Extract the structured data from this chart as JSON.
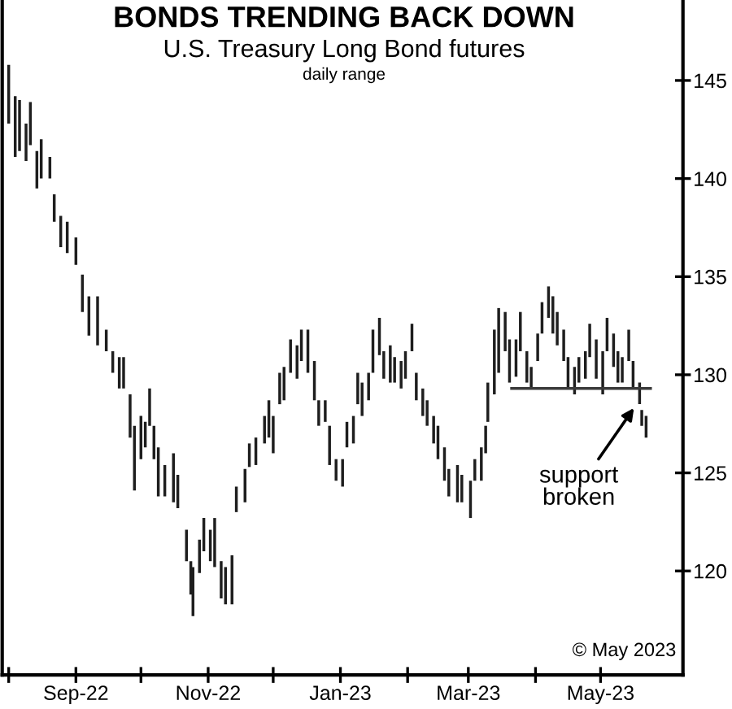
{
  "chart_data": {
    "type": "bar",
    "title": "BONDS TRENDING BACK DOWN",
    "subtitle": "U.S. Treasury Long Bond futures",
    "ylabel": "daily range",
    "series": [
      {
        "color": "#1e1e1e",
        "x": [
          "2022-08-01",
          "2022-08-04",
          "2022-08-06",
          "2022-08-09",
          "2022-08-11",
          "2022-08-14",
          "2022-08-16",
          "2022-08-20",
          "2022-08-22",
          "2022-08-25",
          "2022-08-28",
          "2022-09-01",
          "2022-09-04",
          "2022-09-07",
          "2022-09-11",
          "2022-09-15",
          "2022-09-18",
          "2022-09-21",
          "2022-09-23",
          "2022-09-26",
          "2022-09-28",
          "2022-10-01",
          "2022-10-03",
          "2022-10-05",
          "2022-10-07",
          "2022-10-09",
          "2022-10-12",
          "2022-10-16",
          "2022-10-18",
          "2022-10-22",
          "2022-10-24",
          "2022-10-25",
          "2022-10-28",
          "2022-10-30",
          "2022-11-02",
          "2022-11-04",
          "2022-11-07",
          "2022-11-09",
          "2022-11-12",
          "2022-11-14",
          "2022-11-18",
          "2022-11-20",
          "2022-11-23",
          "2022-11-27",
          "2022-11-29",
          "2022-12-01",
          "2022-12-04",
          "2022-12-06",
          "2022-12-09",
          "2022-12-12",
          "2022-12-14",
          "2022-12-17",
          "2022-12-20",
          "2022-12-22",
          "2022-12-25",
          "2022-12-27",
          "2022-12-30",
          "2023-01-02",
          "2023-01-04",
          "2023-01-07",
          "2023-01-09",
          "2023-01-11",
          "2023-01-14",
          "2023-01-16",
          "2023-01-19",
          "2023-01-21",
          "2023-01-24",
          "2023-01-26",
          "2023-01-29",
          "2023-01-31",
          "2023-02-03",
          "2023-02-05",
          "2023-02-08",
          "2023-02-10",
          "2023-02-13",
          "2023-02-15",
          "2023-02-18",
          "2023-02-20",
          "2023-02-24",
          "2023-02-26",
          "2023-03-02",
          "2023-03-04",
          "2023-03-07",
          "2023-03-09",
          "2023-03-10",
          "2023-03-13",
          "2023-03-15",
          "2023-03-18",
          "2023-03-20",
          "2023-03-23",
          "2023-03-25",
          "2023-03-28",
          "2023-03-30",
          "2023-04-02",
          "2023-04-04",
          "2023-04-07",
          "2023-04-09",
          "2023-04-11",
          "2023-04-14",
          "2023-04-16",
          "2023-04-19",
          "2023-04-21",
          "2023-04-24",
          "2023-04-26",
          "2023-04-29",
          "2023-05-02",
          "2023-05-04",
          "2023-05-07",
          "2023-05-09",
          "2023-05-11",
          "2023-05-14",
          "2023-05-16",
          "2023-05-19",
          "2023-05-20",
          "2023-05-22"
        ],
        "base": [
          142.8,
          141.1,
          141.4,
          140.9,
          141.7,
          139.5,
          140.0,
          140.0,
          137.8,
          136.5,
          136.2,
          135.6,
          133.2,
          132.0,
          131.5,
          131.2,
          130.1,
          129.3,
          129.3,
          126.8,
          124.1,
          125.7,
          126.3,
          127.4,
          125.7,
          123.8,
          123.8,
          123.5,
          123.2,
          120.5,
          118.8,
          117.7,
          119.9,
          121.0,
          120.5,
          120.2,
          118.6,
          118.3,
          118.3,
          123.0,
          123.5,
          125.3,
          125.4,
          126.5,
          126.8,
          126.0,
          128.5,
          128.7,
          130.1,
          129.8,
          130.7,
          130.1,
          128.7,
          127.4,
          127.6,
          125.4,
          124.6,
          124.3,
          126.3,
          126.5,
          128.5,
          127.9,
          128.7,
          130.1,
          131.0,
          129.8,
          129.6,
          129.6,
          129.3,
          129.8,
          131.2,
          128.7,
          127.9,
          127.4,
          126.5,
          125.7,
          124.6,
          123.8,
          123.5,
          123.5,
          122.7,
          124.6,
          124.6,
          126.0,
          127.6,
          129.0,
          130.1,
          131.2,
          129.6,
          129.9,
          131.2,
          129.6,
          129.3,
          130.7,
          132.1,
          132.9,
          132.1,
          131.5,
          130.7,
          129.3,
          129.0,
          129.6,
          129.8,
          130.9,
          129.8,
          129.0,
          131.2,
          130.4,
          129.6,
          129.6,
          130.7,
          129.3,
          128.5,
          127.4,
          126.8
        ],
        "values": [
          3.0,
          3.1,
          2.6,
          1.9,
          2.2,
          1.9,
          2.0,
          1.1,
          1.4,
          1.6,
          1.6,
          1.4,
          1.9,
          2.0,
          2.5,
          1.1,
          1.1,
          1.6,
          1.6,
          2.2,
          3.3,
          2.2,
          1.3,
          1.9,
          1.7,
          2.5,
          1.6,
          2.5,
          1.7,
          1.6,
          1.7,
          2.5,
          1.7,
          1.7,
          1.6,
          2.5,
          1.9,
          1.9,
          2.5,
          1.3,
          1.7,
          1.2,
          1.4,
          1.4,
          1.9,
          1.9,
          1.6,
          1.7,
          1.7,
          1.7,
          1.6,
          2.2,
          2.0,
          1.3,
          1.1,
          2.0,
          1.1,
          1.4,
          1.3,
          1.4,
          1.6,
          1.7,
          1.4,
          2.2,
          1.9,
          1.4,
          1.9,
          1.3,
          1.4,
          1.4,
          1.4,
          1.4,
          1.4,
          1.3,
          1.4,
          1.7,
          1.7,
          1.4,
          1.9,
          1.4,
          1.9,
          1.1,
          1.7,
          1.4,
          2.0,
          3.3,
          3.3,
          2.0,
          2.2,
          1.9,
          2.0,
          1.6,
          1.1,
          1.4,
          1.6,
          1.6,
          1.9,
          1.7,
          1.6,
          1.6,
          1.4,
          1.3,
          1.4,
          1.7,
          2.0,
          2.2,
          1.7,
          1.7,
          1.6,
          1.3,
          1.6,
          1.4,
          1.1,
          0.8,
          1.1
        ]
      },
      {
        "type": "line",
        "color": "#3a3a3a",
        "x": [
          "2023-03-21",
          "2023-05-24"
        ],
        "values": [
          129.3,
          129.3
        ]
      }
    ],
    "annotations": [
      {
        "text": "support\nbroken",
        "x": "2023-05-17",
        "y": 128.4
      },
      "© May 2023"
    ],
    "xlim": [
      "2022-07-29",
      "2023-06-08"
    ],
    "xticks": [
      {
        "value": "2022-08-01",
        "label": null
      },
      {
        "value": "2022-09-01",
        "label": "Sep-22"
      },
      {
        "value": "2022-10-01",
        "label": null
      },
      {
        "value": "2022-11-01",
        "label": "Nov-22"
      },
      {
        "value": "2022-12-01",
        "label": null
      },
      {
        "value": "2023-01-01",
        "label": "Jan-23"
      },
      {
        "value": "2023-02-01",
        "label": null
      },
      {
        "value": "2023-03-01",
        "label": "Mar-23"
      },
      {
        "value": "2023-04-01",
        "label": null
      },
      {
        "value": "2023-05-01",
        "label": "May-23"
      }
    ],
    "ylim": [
      114.7,
      149.1
    ],
    "yticks": [
      120,
      125,
      130,
      135,
      140,
      145
    ],
    "grid": false,
    "legend": false
  }
}
